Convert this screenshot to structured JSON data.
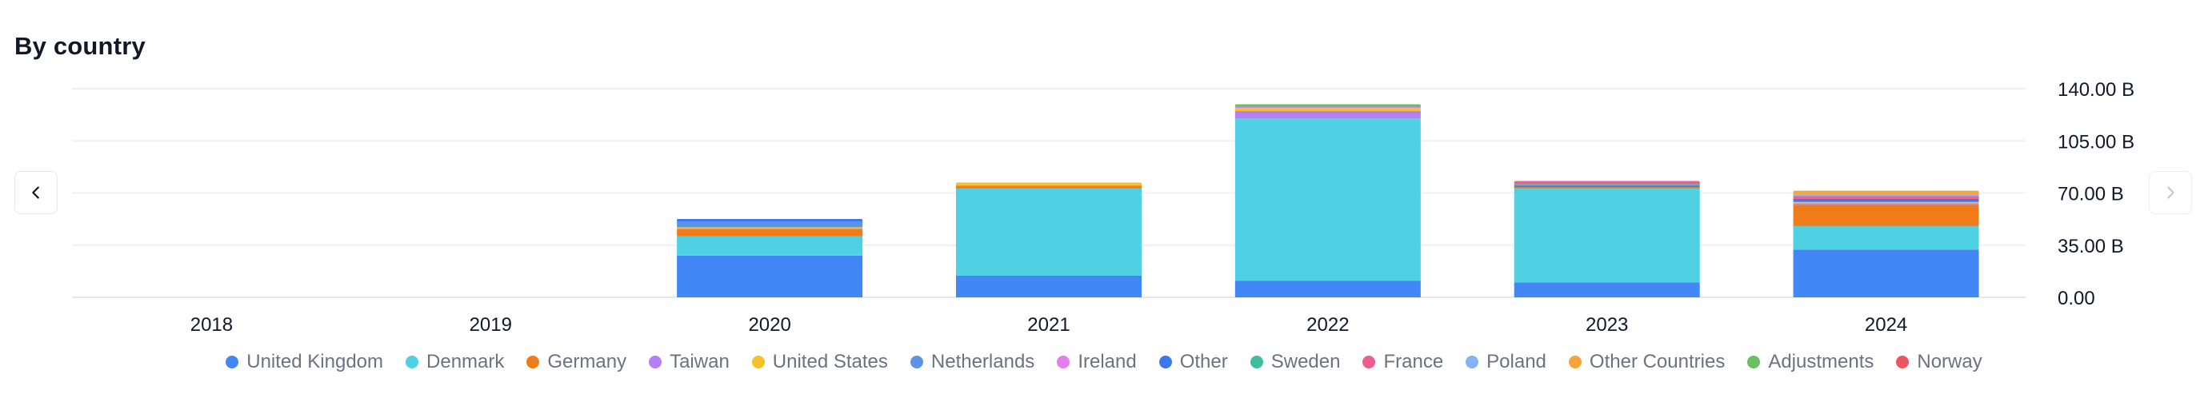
{
  "page": {
    "title": "By country"
  },
  "nav": {
    "prev_icon": "chevron-left-icon",
    "next_icon": "chevron-right-icon"
  },
  "chart_data": {
    "type": "bar",
    "stacked": true,
    "title": "By country",
    "xlabel": "",
    "ylabel": "",
    "ylim": [
      0,
      140
    ],
    "yticks": [
      "0.00",
      "35.00 B",
      "70.00 B",
      "105.00 B",
      "140.00 B"
    ],
    "y_axis_position": "right",
    "grid": true,
    "legend_position": "bottom",
    "categories": [
      "2018",
      "2019",
      "2020",
      "2021",
      "2022",
      "2023",
      "2024"
    ],
    "series": [
      {
        "name": "United Kingdom",
        "color": "#4287f5",
        "values": [
          0,
          0,
          28,
          14.5,
          11,
          10,
          32
        ]
      },
      {
        "name": "Denmark",
        "color": "#4fd0e3",
        "values": [
          0,
          0,
          13,
          58.5,
          109,
          63,
          16
        ]
      },
      {
        "name": "Germany",
        "color": "#f07b19",
        "values": [
          0,
          0,
          5,
          2,
          0,
          1,
          14
        ]
      },
      {
        "name": "Taiwan",
        "color": "#b67ef5",
        "values": [
          0,
          0,
          0,
          0,
          5,
          0,
          1
        ]
      },
      {
        "name": "United States",
        "color": "#f6c02a",
        "values": [
          0,
          0,
          1,
          1.5,
          2,
          0,
          1
        ]
      },
      {
        "name": "Netherlands",
        "color": "#5b93e6",
        "values": [
          0,
          0,
          4,
          0,
          0,
          0,
          0
        ]
      },
      {
        "name": "Ireland",
        "color": "#e67cf2",
        "values": [
          0,
          0,
          0,
          0,
          1,
          0,
          0
        ]
      },
      {
        "name": "Other",
        "color": "#3b77ed",
        "values": [
          0,
          0,
          1,
          0,
          0,
          1,
          2
        ]
      },
      {
        "name": "Sweden",
        "color": "#3dbf9f",
        "values": [
          0,
          0,
          0,
          0,
          0,
          1,
          0
        ]
      },
      {
        "name": "France",
        "color": "#ee5d8f",
        "values": [
          0,
          0,
          0,
          0,
          0,
          1.5,
          2
        ]
      },
      {
        "name": "Poland",
        "color": "#84b3f5",
        "values": [
          0,
          0,
          0,
          0,
          0,
          0,
          1
        ]
      },
      {
        "name": "Other Countries",
        "color": "#f6a43c",
        "values": [
          0,
          0,
          0,
          0,
          0,
          0,
          2
        ]
      },
      {
        "name": "Adjustments",
        "color": "#6bbf63",
        "values": [
          0,
          0,
          0,
          0,
          1,
          0,
          0
        ]
      },
      {
        "name": "Norway",
        "color": "#ee5560",
        "values": [
          0,
          0,
          0,
          0,
          0,
          0,
          0
        ]
      }
    ]
  }
}
